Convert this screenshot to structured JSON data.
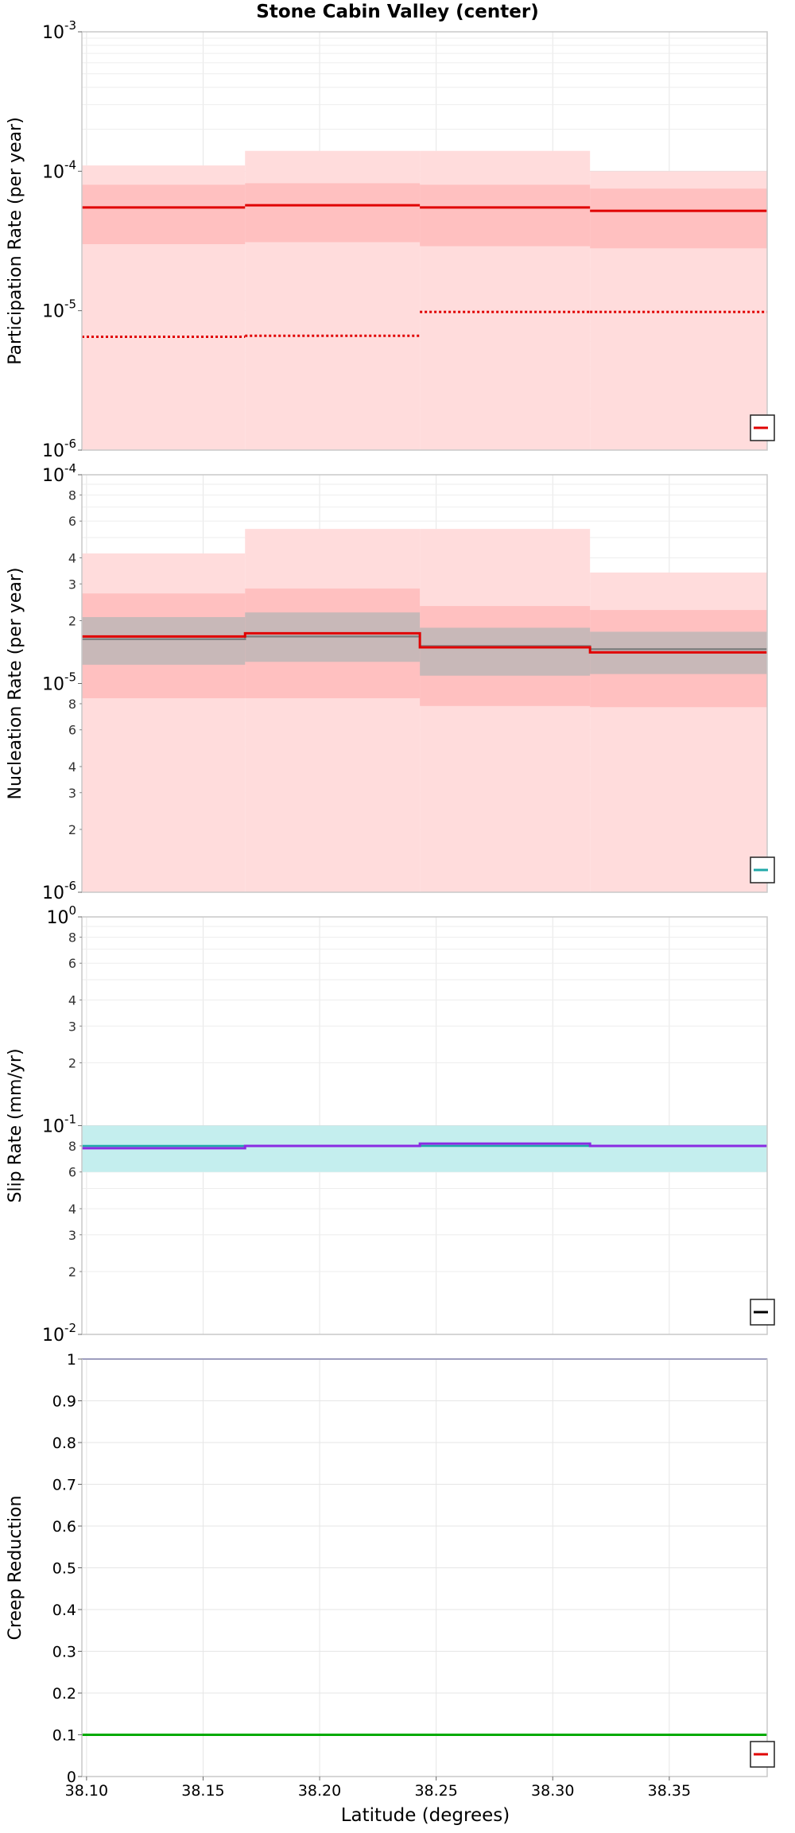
{
  "title": "Stone Cabin Valley (center)",
  "colors": {
    "red": "#e00000",
    "red_band_outer": "#ffdcdc",
    "red_band_inner": "#ffc0c0",
    "gray": "#808080",
    "gray_band": "#c8b8b8",
    "cyan": "#20a8a8",
    "cyan_band": "#c4eeee",
    "purple": "#8a2be2",
    "blue": "#2020a0",
    "green": "#00aa00",
    "grid": "#e6e6e6",
    "frame": "#c8c8c8"
  },
  "x_axis": {
    "label": "Latitude (degrees)",
    "min": 38.098,
    "max": 38.392,
    "ticks": [
      38.1,
      38.15,
      38.2,
      38.25,
      38.3,
      38.35
    ],
    "tick_labels": [
      "38.10",
      "38.15",
      "38.20",
      "38.25",
      "38.30",
      "38.35"
    ]
  },
  "chart_data": [
    {
      "type": "line",
      "step": true,
      "ylabel": "Participation Rate (per year)",
      "scale": "log",
      "ylim": [
        1e-06,
        0.001
      ],
      "major_ticks": [
        {
          "value": 0.001,
          "mantissa": "10",
          "exponent": "-3"
        },
        {
          "value": 0.0001,
          "mantissa": "10",
          "exponent": "-4"
        },
        {
          "value": 1e-05,
          "mantissa": "10",
          "exponent": "-5"
        },
        {
          "value": 1e-06,
          "mantissa": "10",
          "exponent": "-6"
        }
      ],
      "minor_tick_labels": [],
      "legend": "bottom-right",
      "segments": [
        {
          "x0": 38.098,
          "x1": 38.168,
          "mean": 5.5e-05,
          "inner": [
            3e-05,
            8e-05
          ],
          "outer": [
            1e-06,
            0.00011
          ],
          "dotted": 6.5e-06
        },
        {
          "x0": 38.168,
          "x1": 38.243,
          "mean": 5.7e-05,
          "inner": [
            3.1e-05,
            8.2e-05
          ],
          "outer": [
            1e-06,
            0.00014
          ],
          "dotted": 6.6e-06
        },
        {
          "x0": 38.243,
          "x1": 38.316,
          "mean": 5.5e-05,
          "inner": [
            2.9e-05,
            8e-05
          ],
          "outer": [
            1e-06,
            0.00014
          ],
          "dotted": 9.8e-06
        },
        {
          "x0": 38.316,
          "x1": 38.392,
          "mean": 5.2e-05,
          "inner": [
            2.8e-05,
            7.5e-05
          ],
          "outer": [
            1e-06,
            0.0001
          ],
          "dotted": 9.8e-06
        }
      ]
    },
    {
      "type": "line",
      "step": true,
      "ylabel": "Nucleation Rate (per year)",
      "scale": "log",
      "ylim": [
        1e-06,
        0.0001
      ],
      "major_ticks": [
        {
          "value": 0.0001,
          "mantissa": "10",
          "exponent": "-4"
        },
        {
          "value": 1e-05,
          "mantissa": "10",
          "exponent": "-5"
        },
        {
          "value": 1e-06,
          "mantissa": "10",
          "exponent": "-6"
        }
      ],
      "minor_tick_labels": [
        {
          "value": 8e-05,
          "label": "8"
        },
        {
          "value": 6e-05,
          "label": "6"
        },
        {
          "value": 4e-05,
          "label": "4"
        },
        {
          "value": 3e-05,
          "label": "3"
        },
        {
          "value": 2e-05,
          "label": "2"
        },
        {
          "value": 8e-06,
          "label": "8"
        },
        {
          "value": 6e-06,
          "label": "6"
        },
        {
          "value": 4e-06,
          "label": "4"
        },
        {
          "value": 3e-06,
          "label": "3"
        },
        {
          "value": 2e-06,
          "label": "2"
        }
      ],
      "legend": "bottom-right",
      "segments": [
        {
          "x0": 38.098,
          "x1": 38.168,
          "mean": 1.68e-05,
          "gray": 1.63e-05,
          "gray_band": [
            1.23e-05,
            2.08e-05
          ],
          "inner": [
            8.5e-06,
            2.7e-05
          ],
          "outer": [
            1e-06,
            4.2e-05
          ]
        },
        {
          "x0": 38.168,
          "x1": 38.243,
          "mean": 1.74e-05,
          "gray": 1.68e-05,
          "gray_band": [
            1.27e-05,
            2.19e-05
          ],
          "inner": [
            8.5e-06,
            2.85e-05
          ],
          "outer": [
            1e-06,
            5.5e-05
          ]
        },
        {
          "x0": 38.243,
          "x1": 38.316,
          "mean": 1.49e-05,
          "gray": 1.51e-05,
          "gray_band": [
            1.09e-05,
            1.85e-05
          ],
          "inner": [
            7.8e-06,
            2.35e-05
          ],
          "outer": [
            1e-06,
            5.5e-05
          ]
        },
        {
          "x0": 38.316,
          "x1": 38.392,
          "mean": 1.41e-05,
          "gray": 1.46e-05,
          "gray_band": [
            1.11e-05,
            1.77e-05
          ],
          "inner": [
            7.7e-06,
            2.25e-05
          ],
          "outer": [
            1e-06,
            3.4e-05
          ]
        }
      ]
    },
    {
      "type": "line",
      "step": true,
      "ylabel": "Slip Rate (mm/yr)",
      "scale": "log",
      "ylim": [
        0.01,
        1
      ],
      "major_ticks": [
        {
          "value": 1,
          "mantissa": "10",
          "exponent": "0"
        },
        {
          "value": 0.1,
          "mantissa": "10",
          "exponent": "-1"
        },
        {
          "value": 0.01,
          "mantissa": "10",
          "exponent": "-2"
        }
      ],
      "minor_tick_labels": [
        {
          "value": 0.8,
          "label": "8"
        },
        {
          "value": 0.6,
          "label": "6"
        },
        {
          "value": 0.4,
          "label": "4"
        },
        {
          "value": 0.3,
          "label": "3"
        },
        {
          "value": 0.2,
          "label": "2"
        },
        {
          "value": 0.08,
          "label": "8"
        },
        {
          "value": 0.06,
          "label": "6"
        },
        {
          "value": 0.04,
          "label": "4"
        },
        {
          "value": 0.03,
          "label": "3"
        },
        {
          "value": 0.02,
          "label": "2"
        }
      ],
      "legend": "bottom-right",
      "band": [
        0.06,
        0.1
      ],
      "cyan_value": 0.08,
      "segments": [
        {
          "x0": 38.098,
          "x1": 38.168,
          "purple": 0.078
        },
        {
          "x0": 38.168,
          "x1": 38.243,
          "purple": 0.08
        },
        {
          "x0": 38.243,
          "x1": 38.316,
          "purple": 0.082
        },
        {
          "x0": 38.316,
          "x1": 38.392,
          "purple": 0.08
        }
      ]
    },
    {
      "type": "line",
      "ylabel": "Creep Reduction",
      "scale": "linear",
      "ylim": [
        0,
        1
      ],
      "ticks": [
        0,
        0.1,
        0.2,
        0.3,
        0.4,
        0.5,
        0.6,
        0.7,
        0.8,
        0.9,
        1
      ],
      "tick_labels": [
        "0",
        "0.1",
        "0.2",
        "0.3",
        "0.4",
        "0.5",
        "0.6",
        "0.7",
        "0.8",
        "0.9",
        "1"
      ],
      "legend": "bottom-right",
      "series": [
        {
          "color_key": "blue",
          "values": [
            1,
            1
          ]
        },
        {
          "color_key": "green",
          "values": [
            0.1,
            0.1
          ]
        }
      ]
    }
  ]
}
